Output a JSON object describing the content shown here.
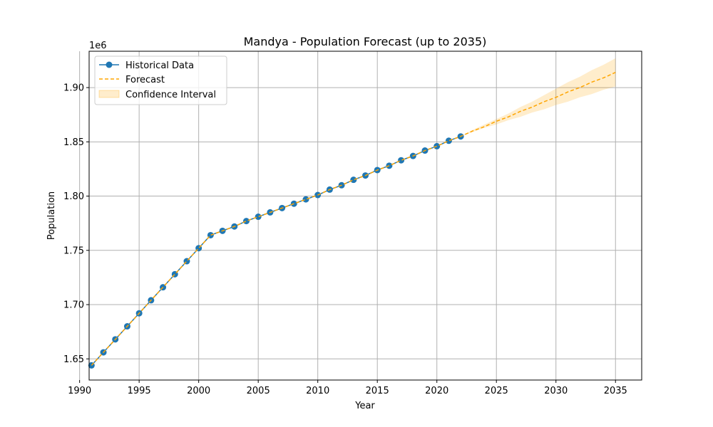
{
  "chart_data": {
    "type": "line",
    "title": "Mandya - Population Forecast (up to 2035)",
    "xlabel": "Year",
    "ylabel": "Population",
    "y_offset_label": "1e6",
    "xlim": [
      1990.8,
      2037.2
    ],
    "ylim": [
      1.6305,
      1.9335
    ],
    "x_ticks": [
      1990,
      1995,
      2000,
      2005,
      2010,
      2015,
      2020,
      2025,
      2030,
      2035
    ],
    "x_tick_labels": [
      "1990",
      "1995",
      "2000",
      "2005",
      "2010",
      "2015",
      "2020",
      "2025",
      "2030",
      "2035"
    ],
    "y_ticks": [
      1.65,
      1.7,
      1.75,
      1.8,
      1.85,
      1.9
    ],
    "y_tick_labels": [
      "1.65",
      "1.70",
      "1.75",
      "1.80",
      "1.85",
      "1.90"
    ],
    "grid": true,
    "legend_position": "top-left",
    "legend": [
      "Historical Data",
      "Forecast",
      "Confidence Interval"
    ],
    "colors": {
      "historical": "#1f77b4",
      "forecast": "#ffa500",
      "ci_fill": "#ffa500"
    },
    "series": [
      {
        "name": "Historical Data",
        "style": "line-with-markers",
        "x": [
          1991,
          1992,
          1993,
          1994,
          1995,
          1996,
          1997,
          1998,
          1999,
          2000,
          2001,
          2002,
          2003,
          2004,
          2005,
          2006,
          2007,
          2008,
          2009,
          2010,
          2011,
          2012,
          2013,
          2014,
          2015,
          2016,
          2017,
          2018,
          2019,
          2020,
          2021,
          2022
        ],
        "y": [
          1.644,
          1.656,
          1.668,
          1.68,
          1.692,
          1.704,
          1.716,
          1.728,
          1.74,
          1.752,
          1.764,
          1.768,
          1.772,
          1.777,
          1.781,
          1.785,
          1.789,
          1.793,
          1.797,
          1.801,
          1.806,
          1.81,
          1.815,
          1.819,
          1.824,
          1.828,
          1.833,
          1.837,
          1.842,
          1.846,
          1.851,
          1.855
        ]
      },
      {
        "name": "Forecast",
        "style": "dashed",
        "x": [
          1991,
          1992,
          1993,
          1994,
          1995,
          1996,
          1997,
          1998,
          1999,
          2000,
          2001,
          2002,
          2003,
          2004,
          2005,
          2006,
          2007,
          2008,
          2009,
          2010,
          2011,
          2012,
          2013,
          2014,
          2015,
          2016,
          2017,
          2018,
          2019,
          2020,
          2021,
          2022,
          2023,
          2024,
          2025,
          2026,
          2027,
          2028,
          2029,
          2030,
          2031,
          2032,
          2033,
          2034,
          2035
        ],
        "y": [
          1.644,
          1.656,
          1.668,
          1.68,
          1.692,
          1.704,
          1.716,
          1.728,
          1.74,
          1.752,
          1.764,
          1.768,
          1.772,
          1.777,
          1.781,
          1.785,
          1.789,
          1.793,
          1.797,
          1.801,
          1.806,
          1.81,
          1.815,
          1.819,
          1.824,
          1.828,
          1.833,
          1.837,
          1.842,
          1.846,
          1.851,
          1.855,
          1.86,
          1.864,
          1.869,
          1.873,
          1.878,
          1.882,
          1.887,
          1.891,
          1.896,
          1.9,
          1.905,
          1.909,
          1.914
        ]
      }
    ],
    "confidence_interval": {
      "name": "Confidence Interval",
      "x": [
        2022,
        2023,
        2024,
        2025,
        2026,
        2027,
        2028,
        2029,
        2030,
        2031,
        2032,
        2033,
        2034,
        2035
      ],
      "lower": [
        1.855,
        1.859,
        1.863,
        1.866,
        1.87,
        1.873,
        1.877,
        1.88,
        1.884,
        1.887,
        1.891,
        1.894,
        1.898,
        1.901
      ],
      "upper": [
        1.855,
        1.861,
        1.866,
        1.871,
        1.876,
        1.882,
        1.887,
        1.893,
        1.899,
        1.905,
        1.91,
        1.916,
        1.921,
        1.927
      ]
    }
  }
}
